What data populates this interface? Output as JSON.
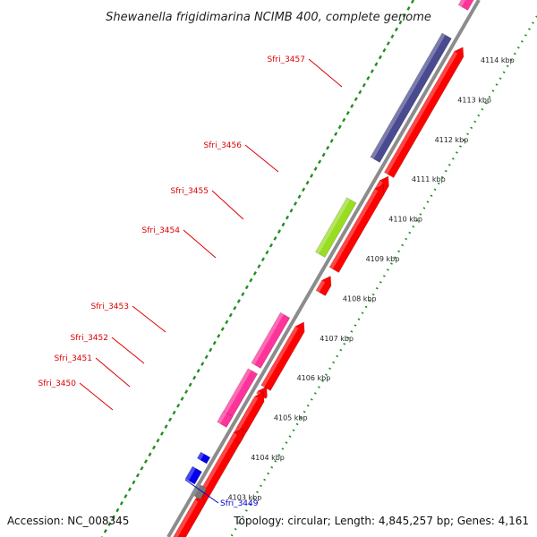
{
  "title": "Shewanella frigidimarina NCIMB 400, complete genome",
  "footer": {
    "accession": "Accession: NC_008345",
    "summary": "Topology: circular; Length: 4,845,257 bp; Genes: 4,161"
  },
  "kbp_ticks": [
    "4114 kbp",
    "4113 kbp",
    "4112 kbp",
    "4111 kbp",
    "4110 kbp",
    "4109 kbp",
    "4108 kbp",
    "4107 kbp",
    "4106 kbp",
    "4105 kbp",
    "4104 kbp",
    "4103 kbp"
  ],
  "gene_labels": [
    {
      "name": "Sfri_3457",
      "color": "#dd0000"
    },
    {
      "name": "Sfri_3456",
      "color": "#dd0000"
    },
    {
      "name": "Sfri_3455",
      "color": "#dd0000"
    },
    {
      "name": "Sfri_3454",
      "color": "#dd0000"
    },
    {
      "name": "Sfri_3453",
      "color": "#dd0000"
    },
    {
      "name": "Sfri_3452",
      "color": "#dd0000"
    },
    {
      "name": "Sfri_3451",
      "color": "#dd0000"
    },
    {
      "name": "Sfri_3450",
      "color": "#dd0000"
    },
    {
      "name": "Sfri_3449",
      "color": "#0000cc"
    }
  ],
  "colors": {
    "backbone": "#8c8c8c",
    "forward_cds": "#ff0000",
    "reverse_cds": "#ff3399",
    "large_cds": "#4a4a90",
    "small_cds": "#99dd22",
    "blue_cds": "#0000ee",
    "gray_cds": "#777777",
    "dots": "#1f8f1f"
  }
}
